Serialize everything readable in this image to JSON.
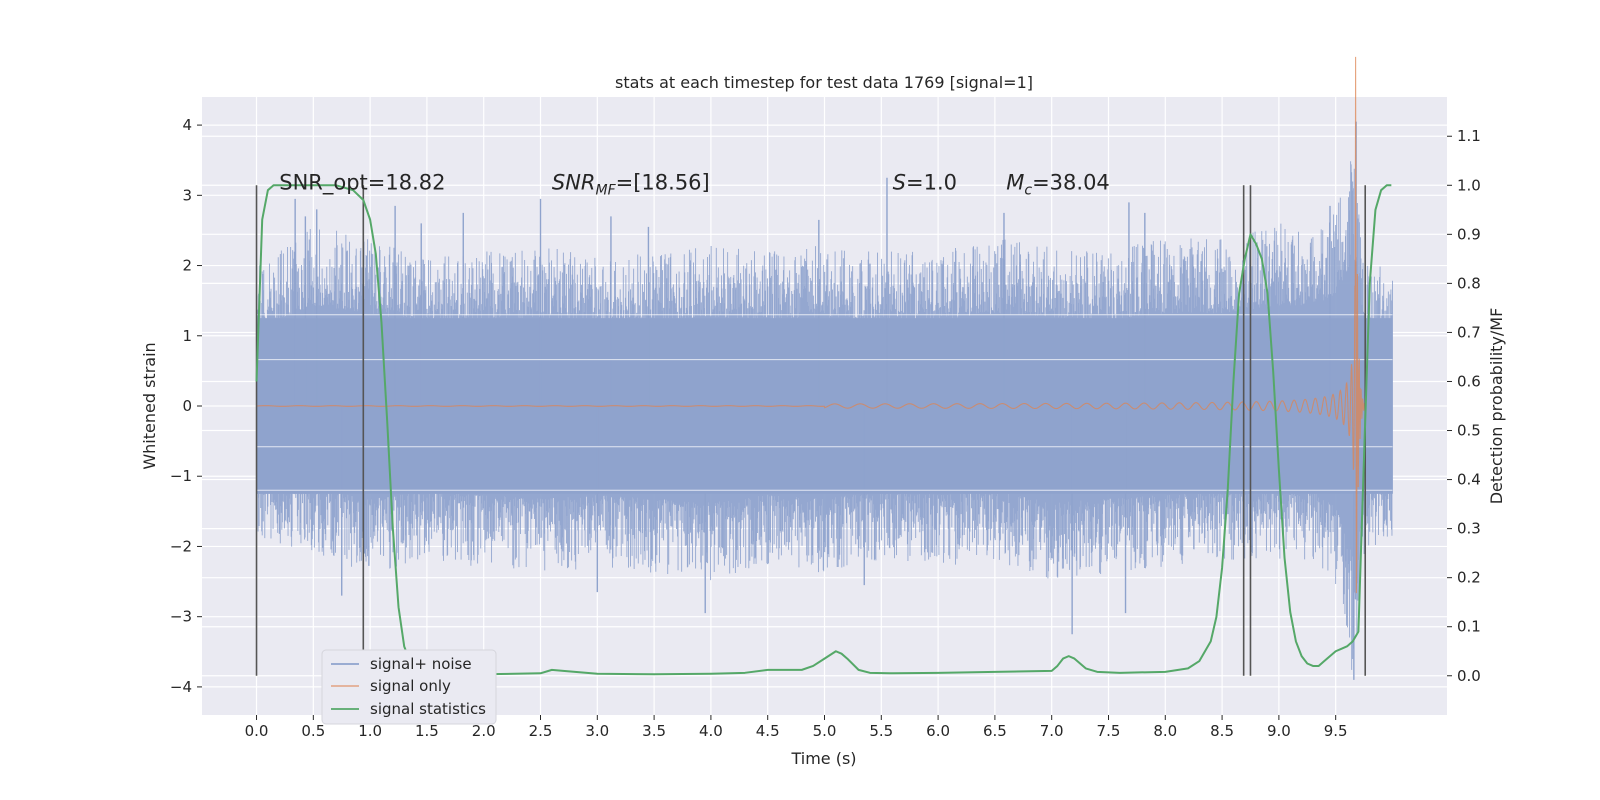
{
  "chart_data": {
    "type": "line",
    "title": "stats at each timestep for test data 1769 [signal=1]",
    "xlabel": "Time (s)",
    "ylabel": "Whitened strain",
    "y2label": "Detection probability/MF",
    "xlim": [
      -0.48,
      10.48
    ],
    "ylim": [
      -4.4,
      4.4
    ],
    "y2lim": [
      -0.08,
      1.18
    ],
    "x_ticks": [
      "0.0",
      "0.5",
      "1.0",
      "1.5",
      "2.0",
      "2.5",
      "3.0",
      "3.5",
      "4.0",
      "4.5",
      "5.0",
      "5.5",
      "6.0",
      "6.5",
      "7.0",
      "7.5",
      "8.0",
      "8.5",
      "9.0",
      "9.5"
    ],
    "x_tick_values": [
      0,
      0.5,
      1,
      1.5,
      2,
      2.5,
      3,
      3.5,
      4,
      4.5,
      5,
      5.5,
      6,
      6.5,
      7,
      7.5,
      8,
      8.5,
      9,
      9.5
    ],
    "y_ticks": [
      "−4",
      "−3",
      "−2",
      "−1",
      "0",
      "1",
      "2",
      "3",
      "4"
    ],
    "y_tick_values": [
      -4,
      -3,
      -2,
      -1,
      0,
      1,
      2,
      3,
      4
    ],
    "y2_ticks": [
      "0.0",
      "0.1",
      "0.2",
      "0.3",
      "0.4",
      "0.5",
      "0.6",
      "0.7",
      "0.8",
      "0.9",
      "1.0",
      "1.1"
    ],
    "y2_tick_values": [
      0,
      0.1,
      0.2,
      0.3,
      0.4,
      0.5,
      0.6,
      0.7,
      0.8,
      0.9,
      1.0,
      1.1
    ],
    "grid": true,
    "legend_position": "lower-left",
    "annotations": [
      {
        "id": "snr-opt",
        "prefix": "SNR_opt",
        "sub": "",
        "text": "=18.82",
        "italic": false,
        "x": 0.2,
        "y": 3.2
      },
      {
        "id": "snr-mf",
        "prefix": "SNR",
        "sub": "MF",
        "text": "=[18.56]",
        "italic": true,
        "x": 2.6,
        "y": 3.2
      },
      {
        "id": "s-val",
        "prefix": "S",
        "sub": "",
        "text": "=1.0",
        "italic": true,
        "x": 5.6,
        "y": 3.2
      },
      {
        "id": "mc-val",
        "prefix": "M",
        "sub": "c",
        "text": "=38.04",
        "italic": true,
        "x": 6.6,
        "y": 3.2
      }
    ],
    "vertical_markers": [
      0.0,
      0.94,
      8.69,
      8.75,
      9.76
    ],
    "vertical_marker_range_y2": [
      0.0,
      1.0
    ],
    "series": [
      {
        "name": "signal+ noise",
        "color": "#8fa3cd",
        "kind": "noise",
        "envelope": {
          "x": [
            0,
            0.5,
            1,
            1.5,
            2,
            2.5,
            3,
            3.5,
            4,
            4.5,
            5,
            5.5,
            6,
            6.5,
            7,
            7.5,
            8,
            8.5,
            9,
            9.3,
            9.5,
            9.6,
            9.65,
            9.7,
            9.75,
            9.8,
            9.9,
            9.99
          ],
          "hi": [
            2.0,
            2.6,
            2.4,
            2.1,
            2.2,
            2.3,
            2.1,
            2.2,
            2.3,
            2.2,
            2.3,
            2.2,
            2.2,
            2.4,
            2.3,
            2.2,
            2.4,
            2.4,
            2.6,
            2.6,
            2.9,
            3.5,
            4.0,
            3.3,
            2.2,
            1.9,
            2.0,
            1.8
          ],
          "lo": [
            -1.9,
            -2.1,
            -2.4,
            -2.2,
            -2.3,
            -2.4,
            -2.3,
            -2.4,
            -2.5,
            -2.3,
            -2.4,
            -2.2,
            -2.3,
            -2.2,
            -2.5,
            -2.4,
            -2.3,
            -2.2,
            -2.2,
            -2.2,
            -2.6,
            -3.4,
            -3.9,
            -3.4,
            -2.2,
            -2.1,
            -2.0,
            -1.9
          ]
        },
        "spikes": [
          {
            "x": 0.34,
            "y": 2.95
          },
          {
            "x": 0.43,
            "y": 2.7
          },
          {
            "x": 0.53,
            "y": 2.8
          },
          {
            "x": 1.22,
            "y": 2.85
          },
          {
            "x": 1.45,
            "y": 2.6
          },
          {
            "x": 1.82,
            "y": 2.75
          },
          {
            "x": 2.5,
            "y": 2.95
          },
          {
            "x": 3.12,
            "y": 2.7
          },
          {
            "x": 3.45,
            "y": 2.55
          },
          {
            "x": 4.95,
            "y": 2.65
          },
          {
            "x": 5.55,
            "y": 3.25
          },
          {
            "x": 6.58,
            "y": 2.75
          },
          {
            "x": 7.68,
            "y": 2.9
          },
          {
            "x": 7.82,
            "y": 2.75
          },
          {
            "x": 9.45,
            "y": 2.85
          },
          {
            "x": 0.75,
            "y": -2.7
          },
          {
            "x": 0.95,
            "y": -2.1
          },
          {
            "x": 3.0,
            "y": -2.65
          },
          {
            "x": 3.95,
            "y": -2.95
          },
          {
            "x": 5.35,
            "y": -2.55
          },
          {
            "x": 7.18,
            "y": -3.25
          },
          {
            "x": 7.65,
            "y": -2.95
          },
          {
            "x": 9.66,
            "y": -3.9
          },
          {
            "x": 9.68,
            "y": 4.05
          }
        ]
      },
      {
        "name": "signal only",
        "color": "#dd8452",
        "kind": "chirp",
        "chirp": {
          "t_merge": 9.68,
          "t_start": 5.0,
          "amp_peak": 3.8,
          "amp_start": 0.02,
          "t_end": 9.76
        }
      },
      {
        "name": "signal statistics",
        "color": "#55a868",
        "kind": "prob",
        "axis": "right",
        "x": [
          0,
          0.05,
          0.1,
          0.15,
          0.2,
          0.3,
          0.5,
          0.7,
          0.85,
          0.94,
          1.0,
          1.05,
          1.1,
          1.15,
          1.2,
          1.25,
          1.3,
          1.35,
          1.4,
          1.5,
          1.7,
          2.0,
          2.5,
          2.6,
          2.7,
          3.0,
          3.5,
          4.0,
          4.3,
          4.5,
          4.8,
          4.9,
          5.0,
          5.1,
          5.15,
          5.2,
          5.3,
          5.4,
          5.6,
          6.0,
          6.5,
          7.0,
          7.05,
          7.1,
          7.15,
          7.2,
          7.25,
          7.3,
          7.4,
          7.6,
          8.0,
          8.2,
          8.3,
          8.4,
          8.45,
          8.5,
          8.55,
          8.6,
          8.65,
          8.7,
          8.75,
          8.8,
          8.85,
          8.9,
          8.95,
          9.0,
          9.05,
          9.1,
          9.15,
          9.2,
          9.25,
          9.3,
          9.35,
          9.4,
          9.45,
          9.5,
          9.55,
          9.6,
          9.65,
          9.7,
          9.75,
          9.8,
          9.85,
          9.9,
          9.95,
          9.99
        ],
        "y": [
          0.6,
          0.93,
          0.99,
          1.0,
          1.0,
          1.0,
          1.0,
          1.0,
          0.99,
          0.97,
          0.93,
          0.86,
          0.72,
          0.52,
          0.3,
          0.14,
          0.06,
          0.03,
          0.02,
          0.01,
          0.005,
          0.003,
          0.005,
          0.012,
          0.01,
          0.004,
          0.003,
          0.004,
          0.006,
          0.012,
          0.012,
          0.02,
          0.035,
          0.05,
          0.045,
          0.035,
          0.012,
          0.006,
          0.005,
          0.006,
          0.008,
          0.01,
          0.02,
          0.035,
          0.04,
          0.035,
          0.025,
          0.015,
          0.008,
          0.006,
          0.008,
          0.015,
          0.03,
          0.07,
          0.12,
          0.22,
          0.38,
          0.6,
          0.78,
          0.85,
          0.9,
          0.88,
          0.85,
          0.78,
          0.62,
          0.42,
          0.24,
          0.13,
          0.07,
          0.04,
          0.025,
          0.02,
          0.02,
          0.03,
          0.04,
          0.05,
          0.055,
          0.06,
          0.07,
          0.09,
          0.45,
          0.8,
          0.95,
          0.99,
          1.0,
          1.0
        ]
      }
    ]
  }
}
